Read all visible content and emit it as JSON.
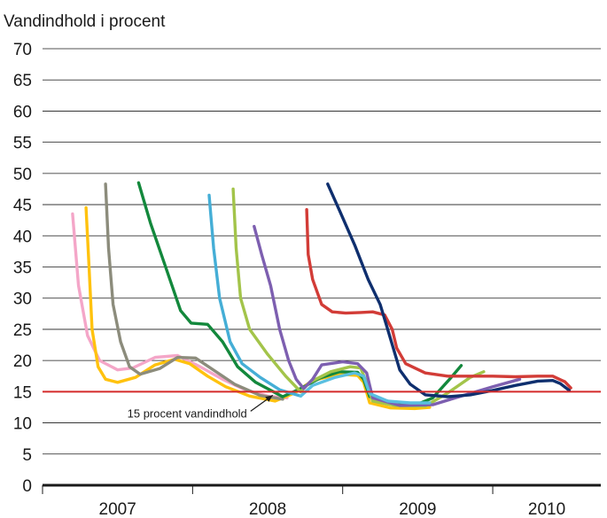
{
  "chart_data": {
    "type": "line",
    "title": "",
    "ylabel": "Vandindhold i procent",
    "xlabel": "",
    "ylim": [
      0,
      70
    ],
    "yticks": [
      "0",
      "5",
      "10",
      "15",
      "20",
      "25",
      "30",
      "35",
      "40",
      "45",
      "50",
      "55",
      "60",
      "65",
      "70"
    ],
    "xlim": [
      2007.0,
      2010.72
    ],
    "xticks": [
      {
        "label": "2007",
        "value": 2007.5
      },
      {
        "label": "2008",
        "value": 2008.5
      },
      {
        "label": "2009",
        "value": 2009.5
      },
      {
        "label": "2010",
        "value": 2010.36
      }
    ],
    "grid": true,
    "reference_line": {
      "value": 15,
      "color": "#d42a2a"
    },
    "annotation": {
      "text": "15 procent vandindhold",
      "x": 2008.54,
      "y": 15
    },
    "series": [
      {
        "color": "#f4a6c8",
        "points": [
          [
            2007.2,
            43.5
          ],
          [
            2007.24,
            32
          ],
          [
            2007.3,
            24
          ],
          [
            2007.38,
            20
          ],
          [
            2007.5,
            18.5
          ],
          [
            2007.6,
            18.8
          ],
          [
            2007.75,
            20.5
          ],
          [
            2007.9,
            20.8
          ],
          [
            2008.05,
            19
          ],
          [
            2008.2,
            17
          ],
          [
            2008.35,
            15.3
          ],
          [
            2008.5,
            14.3
          ],
          [
            2008.63,
            14
          ]
        ]
      },
      {
        "color": "#ffc20e",
        "points": [
          [
            2007.29,
            44.5
          ],
          [
            2007.31,
            35
          ],
          [
            2007.33,
            25
          ],
          [
            2007.37,
            19
          ],
          [
            2007.42,
            17
          ],
          [
            2007.5,
            16.5
          ],
          [
            2007.62,
            17.3
          ],
          [
            2007.75,
            19.3
          ],
          [
            2007.88,
            20.2
          ],
          [
            2007.98,
            19.5
          ],
          [
            2008.1,
            17.5
          ],
          [
            2008.22,
            15.8
          ],
          [
            2008.38,
            14.3
          ],
          [
            2008.55,
            13.5
          ],
          [
            2008.68,
            14.8
          ],
          [
            2008.8,
            16.8
          ],
          [
            2008.98,
            17.8
          ],
          [
            2009.1,
            17.6
          ],
          [
            2009.14,
            16.5
          ],
          [
            2009.18,
            13.2
          ],
          [
            2009.32,
            12.4
          ],
          [
            2009.48,
            12.3
          ],
          [
            2009.58,
            12.5
          ]
        ]
      },
      {
        "color": "#8c8c7c",
        "points": [
          [
            2007.42,
            48.3
          ],
          [
            2007.44,
            38
          ],
          [
            2007.47,
            29
          ],
          [
            2007.52,
            23
          ],
          [
            2007.58,
            19
          ],
          [
            2007.65,
            17.8
          ],
          [
            2007.78,
            18.7
          ],
          [
            2007.9,
            20.5
          ],
          [
            2008.02,
            20.4
          ],
          [
            2008.15,
            18.3
          ],
          [
            2008.28,
            16.2
          ],
          [
            2008.45,
            14.4
          ],
          [
            2008.6,
            13.8
          ]
        ]
      },
      {
        "color": "#13883c",
        "points": [
          [
            2007.64,
            48.5
          ],
          [
            2007.72,
            42
          ],
          [
            2007.82,
            35
          ],
          [
            2007.92,
            28
          ],
          [
            2007.99,
            26
          ],
          [
            2008.1,
            25.8
          ],
          [
            2008.2,
            23
          ],
          [
            2008.3,
            19
          ],
          [
            2008.42,
            16.5
          ],
          [
            2008.6,
            14.2
          ],
          [
            2008.72,
            15.5
          ],
          [
            2008.85,
            17.2
          ],
          [
            2008.98,
            18.2
          ],
          [
            2009.1,
            18.1
          ],
          [
            2009.14,
            17
          ],
          [
            2009.18,
            14.2
          ],
          [
            2009.35,
            13.2
          ],
          [
            2009.5,
            13
          ],
          [
            2009.6,
            14
          ],
          [
            2009.72,
            17.2
          ],
          [
            2009.79,
            19.2
          ]
        ]
      },
      {
        "color": "#45aed6",
        "points": [
          [
            2008.11,
            46.5
          ],
          [
            2008.14,
            38
          ],
          [
            2008.18,
            30
          ],
          [
            2008.25,
            23
          ],
          [
            2008.33,
            19.5
          ],
          [
            2008.45,
            17.3
          ],
          [
            2008.58,
            15.3
          ],
          [
            2008.72,
            14.3
          ]
        ]
      },
      {
        "color": "#a3c44a",
        "points": [
          [
            2008.27,
            47.5
          ],
          [
            2008.29,
            38
          ],
          [
            2008.32,
            30
          ],
          [
            2008.38,
            25
          ],
          [
            2008.5,
            21
          ],
          [
            2008.62,
            17.5
          ],
          [
            2008.72,
            15
          ],
          [
            2008.78,
            16.5
          ],
          [
            2008.92,
            18.2
          ],
          [
            2009.05,
            19
          ],
          [
            2009.12,
            18.8
          ],
          [
            2009.15,
            17
          ],
          [
            2009.2,
            13.5
          ],
          [
            2009.35,
            12.8
          ],
          [
            2009.55,
            12.7
          ],
          [
            2009.7,
            14.8
          ],
          [
            2009.85,
            17.3
          ],
          [
            2009.94,
            18.2
          ]
        ]
      },
      {
        "color": "#7d5fb0",
        "points": [
          [
            2008.41,
            41.5
          ],
          [
            2008.46,
            37
          ],
          [
            2008.52,
            32
          ],
          [
            2008.58,
            25
          ],
          [
            2008.64,
            20
          ],
          [
            2008.69,
            17
          ],
          [
            2008.74,
            15.5
          ],
          [
            2008.8,
            17
          ],
          [
            2008.86,
            19.3
          ],
          [
            2009.0,
            19.8
          ],
          [
            2009.1,
            19.5
          ],
          [
            2009.16,
            18
          ],
          [
            2009.2,
            14
          ],
          [
            2009.38,
            12.8
          ],
          [
            2009.6,
            12.9
          ],
          [
            2009.75,
            14
          ],
          [
            2010.0,
            15.8
          ],
          [
            2010.18,
            17
          ]
        ]
      },
      {
        "color": "#d23c37",
        "points": [
          [
            2008.76,
            44.2
          ],
          [
            2008.77,
            37
          ],
          [
            2008.8,
            33
          ],
          [
            2008.86,
            29
          ],
          [
            2008.93,
            27.8
          ],
          [
            2009.02,
            27.6
          ],
          [
            2009.12,
            27.7
          ],
          [
            2009.2,
            27.8
          ],
          [
            2009.28,
            27.3
          ],
          [
            2009.33,
            25
          ],
          [
            2009.36,
            22
          ],
          [
            2009.42,
            19.5
          ],
          [
            2009.55,
            18
          ],
          [
            2009.7,
            17.5
          ],
          [
            2009.85,
            17.5
          ],
          [
            2010.0,
            17.5
          ],
          [
            2010.15,
            17.4
          ],
          [
            2010.3,
            17.5
          ],
          [
            2010.4,
            17.5
          ],
          [
            2010.48,
            16.6
          ],
          [
            2010.52,
            15.6
          ]
        ]
      },
      {
        "color": "#0f2f6e",
        "points": [
          [
            2008.9,
            48.3
          ],
          [
            2008.98,
            44
          ],
          [
            2009.08,
            38.5
          ],
          [
            2009.17,
            33
          ],
          [
            2009.25,
            29
          ],
          [
            2009.3,
            25
          ],
          [
            2009.38,
            18.5
          ],
          [
            2009.45,
            16.2
          ],
          [
            2009.55,
            14.5
          ],
          [
            2009.7,
            14.2
          ],
          [
            2009.85,
            14.5
          ],
          [
            2010.0,
            15.2
          ],
          [
            2010.15,
            16
          ],
          [
            2010.3,
            16.7
          ],
          [
            2010.4,
            16.8
          ],
          [
            2010.45,
            16.3
          ],
          [
            2010.51,
            15.2
          ]
        ]
      },
      {
        "color": "#5abfe0",
        "points": [
          [
            2008.72,
            14.3
          ],
          [
            2008.8,
            16
          ],
          [
            2008.95,
            17.3
          ],
          [
            2009.08,
            18
          ],
          [
            2009.14,
            17.5
          ],
          [
            2009.18,
            14.7
          ],
          [
            2009.3,
            13.5
          ],
          [
            2009.45,
            13.2
          ],
          [
            2009.58,
            13.2
          ]
        ]
      }
    ]
  }
}
